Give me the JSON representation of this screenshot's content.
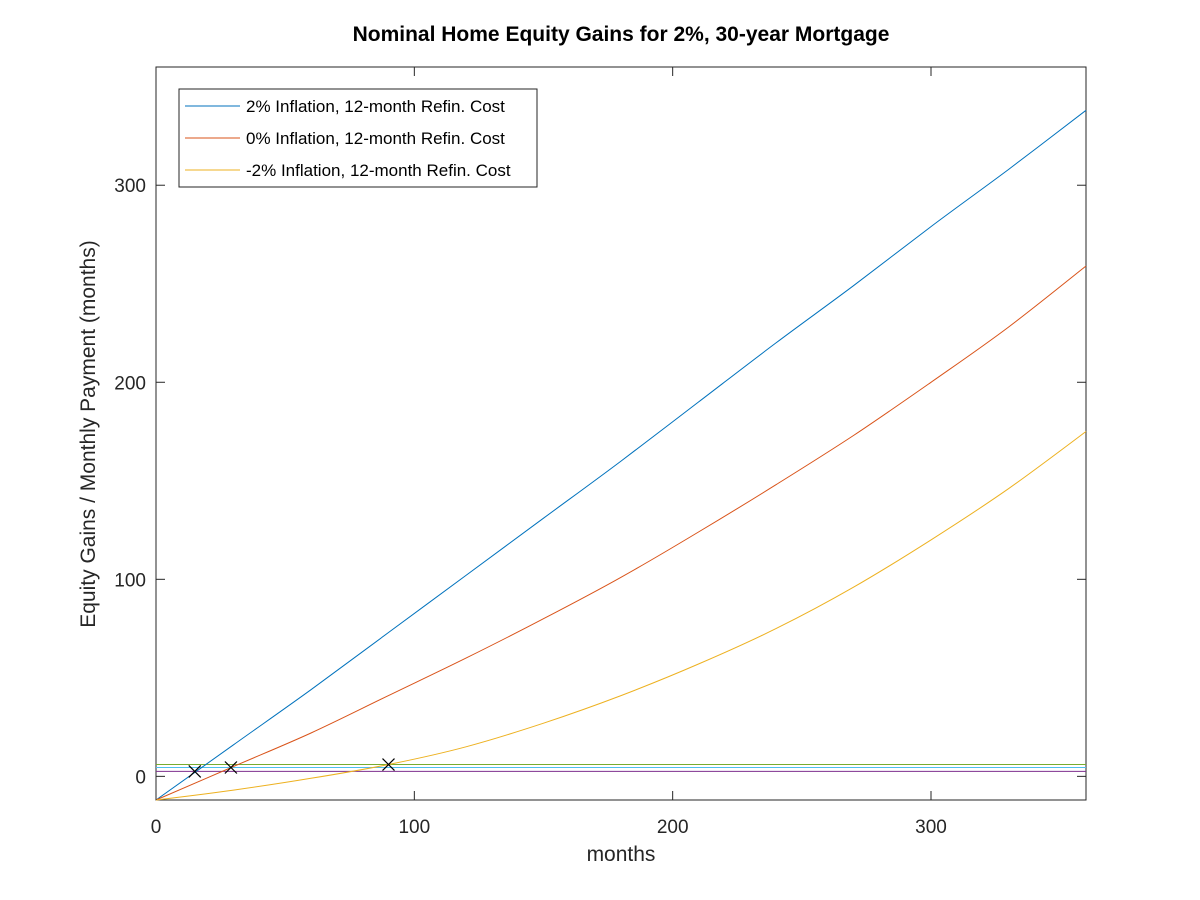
{
  "chart_data": {
    "type": "line",
    "title": "Nominal Home Equity Gains for 2%, 30-year Mortgage",
    "xlabel": "months",
    "ylabel": "Equity Gains / Monthly Payment (months)",
    "xlim": [
      0,
      360
    ],
    "ylim": [
      -12,
      360
    ],
    "xticks": [
      0,
      100,
      200,
      300
    ],
    "yticks": [
      0,
      100,
      200,
      300
    ],
    "xtick_labels": [
      "0",
      "100",
      "200",
      "300"
    ],
    "ytick_labels": [
      "0",
      "100",
      "200",
      "300"
    ],
    "grid": false,
    "legend_position": "top-left",
    "series": [
      {
        "name": "2% Inflation, 12-month Refin. Cost",
        "color": "#0072bd",
        "x": [
          0,
          30,
          60,
          90,
          120,
          150,
          180,
          210,
          240,
          270,
          300,
          330,
          360
        ],
        "y": [
          -12,
          16,
          44,
          73,
          102,
          131,
          160,
          190,
          220,
          249,
          279,
          308,
          338
        ]
      },
      {
        "name": "0% Inflation, 12-month Refin. Cost",
        "color": "#d95319",
        "x": [
          0,
          30,
          60,
          90,
          120,
          150,
          180,
          210,
          240,
          270,
          300,
          330,
          360
        ],
        "y": [
          -12,
          5,
          22,
          41,
          60,
          80,
          101,
          124,
          148,
          173,
          200,
          228,
          259
        ]
      },
      {
        "name": "-2% Inflation, 12-month Refin. Cost",
        "color": "#edb120",
        "x": [
          0,
          30,
          60,
          90,
          120,
          150,
          180,
          210,
          240,
          270,
          300,
          330,
          360
        ],
        "y": [
          -12,
          -7,
          -1,
          6,
          15,
          27,
          41,
          57,
          75,
          96,
          120,
          146,
          175
        ]
      }
    ],
    "reference_lines": [
      {
        "y": 6,
        "color": "#77ac30"
      },
      {
        "y": 4.5,
        "color": "#4dbeee"
      },
      {
        "y": 2.5,
        "color": "#7e2f8e"
      }
    ],
    "markers": [
      {
        "x": 15,
        "y": 2.5,
        "symbol": "x"
      },
      {
        "x": 29,
        "y": 4.5,
        "symbol": "x"
      },
      {
        "x": 90,
        "y": 6,
        "symbol": "x"
      }
    ]
  }
}
